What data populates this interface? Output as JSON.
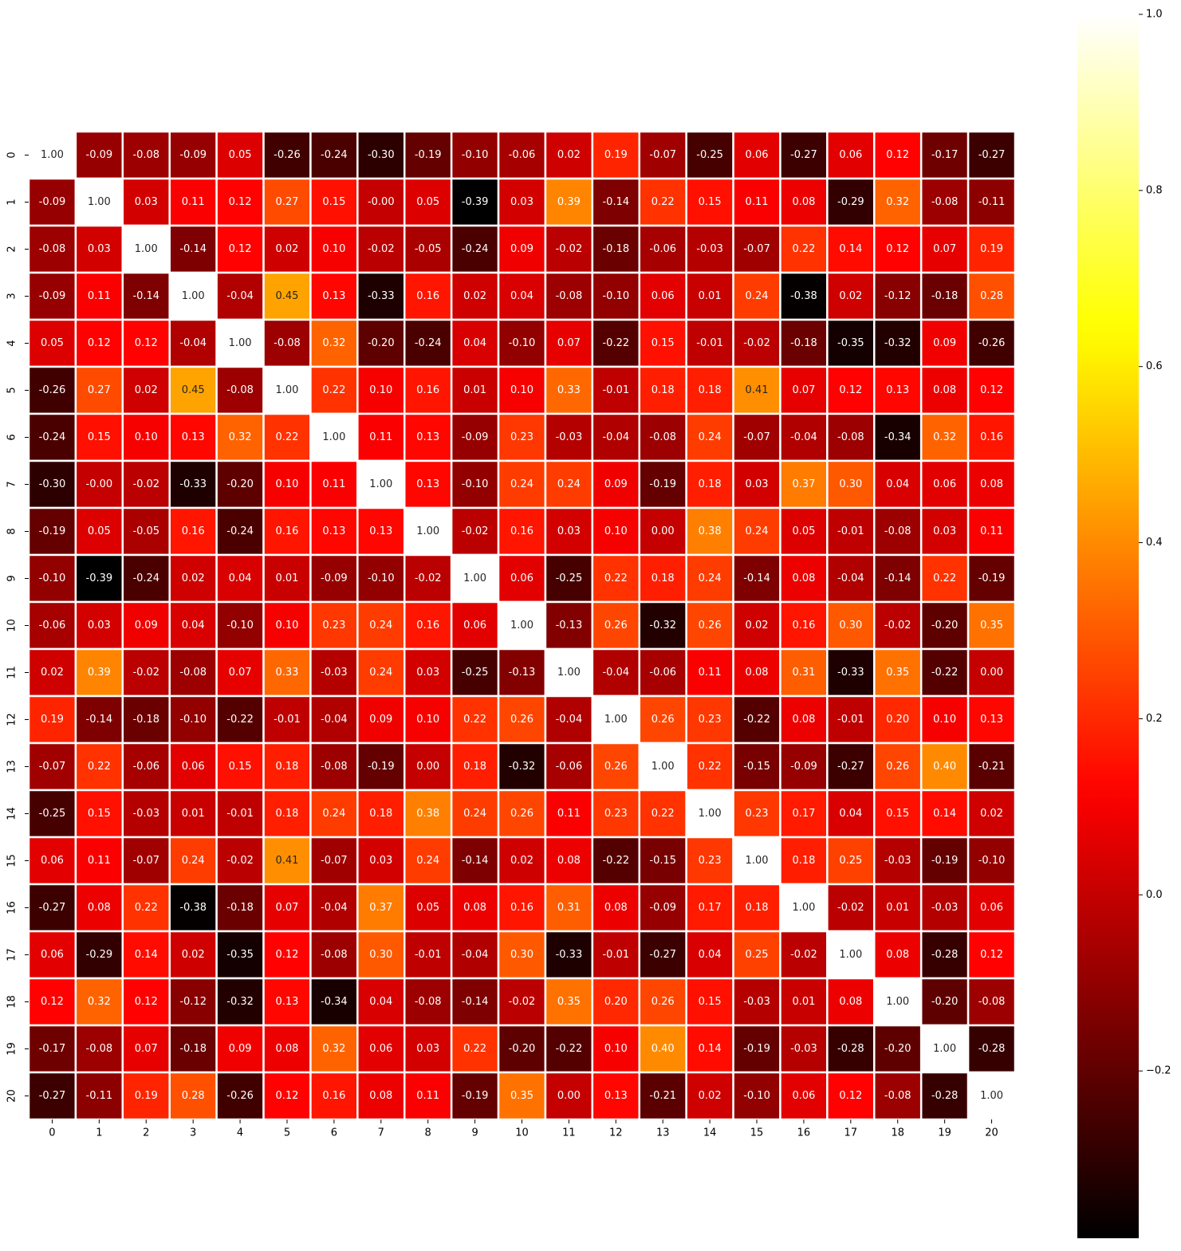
{
  "chart_data": {
    "type": "heatmap",
    "colormap": "hot",
    "categories": [
      "0",
      "1",
      "2",
      "3",
      "4",
      "5",
      "6",
      "7",
      "8",
      "9",
      "10",
      "11",
      "12",
      "13",
      "14",
      "15",
      "16",
      "17",
      "18",
      "19",
      "20"
    ],
    "y_categories": [
      "0",
      "1",
      "2",
      "3",
      "4",
      "5",
      "6",
      "7",
      "8",
      "9",
      "10",
      "11",
      "12",
      "13",
      "14",
      "15",
      "16",
      "17",
      "18",
      "19",
      "20"
    ],
    "values": [
      [
        1.0,
        -0.09,
        -0.08,
        -0.09,
        0.05,
        -0.26,
        -0.24,
        -0.3,
        -0.19,
        -0.1,
        -0.06,
        0.02,
        0.19,
        -0.07,
        -0.25,
        0.06,
        -0.27,
        0.06,
        0.12,
        -0.17,
        -0.27
      ],
      [
        -0.09,
        1.0,
        0.03,
        0.11,
        0.12,
        0.27,
        0.15,
        -0.0,
        0.05,
        -0.39,
        0.03,
        0.39,
        -0.14,
        0.22,
        0.15,
        0.11,
        0.08,
        -0.29,
        0.32,
        -0.08,
        -0.11
      ],
      [
        -0.08,
        0.03,
        1.0,
        -0.14,
        0.12,
        0.02,
        0.1,
        -0.02,
        -0.05,
        -0.24,
        0.09,
        -0.02,
        -0.18,
        -0.06,
        -0.03,
        -0.07,
        0.22,
        0.14,
        0.12,
        0.07,
        0.19
      ],
      [
        -0.09,
        0.11,
        -0.14,
        1.0,
        -0.04,
        0.45,
        0.13,
        -0.33,
        0.16,
        0.02,
        0.04,
        -0.08,
        -0.1,
        0.06,
        0.01,
        0.24,
        -0.38,
        0.02,
        -0.12,
        -0.18,
        0.28
      ],
      [
        0.05,
        0.12,
        0.12,
        -0.04,
        1.0,
        -0.08,
        0.32,
        -0.2,
        -0.24,
        0.04,
        -0.1,
        0.07,
        -0.22,
        0.15,
        -0.01,
        -0.02,
        -0.18,
        -0.35,
        -0.32,
        0.09,
        -0.26
      ],
      [
        -0.26,
        0.27,
        0.02,
        0.45,
        -0.08,
        1.0,
        0.22,
        0.1,
        0.16,
        0.01,
        0.1,
        0.33,
        -0.01,
        0.18,
        0.18,
        0.41,
        0.07,
        0.12,
        0.13,
        0.08,
        0.12
      ],
      [
        -0.24,
        0.15,
        0.1,
        0.13,
        0.32,
        0.22,
        1.0,
        0.11,
        0.13,
        -0.09,
        0.23,
        -0.03,
        -0.04,
        -0.08,
        0.24,
        -0.07,
        -0.04,
        -0.08,
        -0.34,
        0.32,
        0.16
      ],
      [
        -0.3,
        -0.0,
        -0.02,
        -0.33,
        -0.2,
        0.1,
        0.11,
        1.0,
        0.13,
        -0.1,
        0.24,
        0.24,
        0.09,
        -0.19,
        0.18,
        0.03,
        0.37,
        0.3,
        0.04,
        0.06,
        0.08
      ],
      [
        -0.19,
        0.05,
        -0.05,
        0.16,
        -0.24,
        0.16,
        0.13,
        0.13,
        1.0,
        -0.02,
        0.16,
        0.03,
        0.1,
        0.0,
        0.38,
        0.24,
        0.05,
        -0.01,
        -0.08,
        0.03,
        0.11
      ],
      [
        -0.1,
        -0.39,
        -0.24,
        0.02,
        0.04,
        0.01,
        -0.09,
        -0.1,
        -0.02,
        1.0,
        0.06,
        -0.25,
        0.22,
        0.18,
        0.24,
        -0.14,
        0.08,
        -0.04,
        -0.14,
        0.22,
        -0.19
      ],
      [
        -0.06,
        0.03,
        0.09,
        0.04,
        -0.1,
        0.1,
        0.23,
        0.24,
        0.16,
        0.06,
        1.0,
        -0.13,
        0.26,
        -0.32,
        0.26,
        0.02,
        0.16,
        0.3,
        -0.02,
        -0.2,
        0.35
      ],
      [
        0.02,
        0.39,
        -0.02,
        -0.08,
        0.07,
        0.33,
        -0.03,
        0.24,
        0.03,
        -0.25,
        -0.13,
        1.0,
        -0.04,
        -0.06,
        0.11,
        0.08,
        0.31,
        -0.33,
        0.35,
        -0.22,
        0.0
      ],
      [
        0.19,
        -0.14,
        -0.18,
        -0.1,
        -0.22,
        -0.01,
        -0.04,
        0.09,
        0.1,
        0.22,
        0.26,
        -0.04,
        1.0,
        0.26,
        0.23,
        -0.22,
        0.08,
        -0.01,
        0.2,
        0.1,
        0.13
      ],
      [
        -0.07,
        0.22,
        -0.06,
        0.06,
        0.15,
        0.18,
        -0.08,
        -0.19,
        0.0,
        0.18,
        -0.32,
        -0.06,
        0.26,
        1.0,
        0.22,
        -0.15,
        -0.09,
        -0.27,
        0.26,
        0.4,
        -0.21
      ],
      [
        -0.25,
        0.15,
        -0.03,
        0.01,
        -0.01,
        0.18,
        0.24,
        0.18,
        0.38,
        0.24,
        0.26,
        0.11,
        0.23,
        0.22,
        1.0,
        0.23,
        0.17,
        0.04,
        0.15,
        0.14,
        0.02
      ],
      [
        0.06,
        0.11,
        -0.07,
        0.24,
        -0.02,
        0.41,
        -0.07,
        0.03,
        0.24,
        -0.14,
        0.02,
        0.08,
        -0.22,
        -0.15,
        0.23,
        1.0,
        0.18,
        0.25,
        -0.03,
        -0.19,
        -0.1
      ],
      [
        -0.27,
        0.08,
        0.22,
        -0.38,
        -0.18,
        0.07,
        -0.04,
        0.37,
        0.05,
        0.08,
        0.16,
        0.31,
        0.08,
        -0.09,
        0.17,
        0.18,
        1.0,
        -0.02,
        0.01,
        -0.03,
        0.06
      ],
      [
        0.06,
        -0.29,
        0.14,
        0.02,
        -0.35,
        0.12,
        -0.08,
        0.3,
        -0.01,
        -0.04,
        0.3,
        -0.33,
        -0.01,
        -0.27,
        0.04,
        0.25,
        -0.02,
        1.0,
        0.08,
        -0.28,
        0.12
      ],
      [
        0.12,
        0.32,
        0.12,
        -0.12,
        -0.32,
        0.13,
        -0.34,
        0.04,
        -0.08,
        -0.14,
        -0.02,
        0.35,
        0.2,
        0.26,
        0.15,
        -0.03,
        0.01,
        0.08,
        1.0,
        -0.2,
        -0.08
      ],
      [
        -0.17,
        -0.08,
        0.07,
        -0.18,
        0.09,
        0.08,
        0.32,
        0.06,
        0.03,
        0.22,
        -0.2,
        -0.22,
        0.1,
        0.4,
        0.14,
        -0.19,
        -0.03,
        -0.28,
        -0.2,
        1.0,
        -0.28
      ],
      [
        -0.27,
        -0.11,
        0.19,
        0.28,
        -0.26,
        0.12,
        0.16,
        0.08,
        0.11,
        -0.19,
        0.35,
        0.0,
        0.13,
        -0.21,
        0.02,
        -0.1,
        0.06,
        0.12,
        -0.08,
        -0.28,
        1.0
      ]
    ],
    "value_labels": [
      [
        "1.00",
        "-0.09",
        "-0.08",
        "-0.09",
        "0.05",
        "-0.26",
        "-0.24",
        "-0.30",
        "-0.19",
        "-0.10",
        "-0.06",
        "0.02",
        "0.19",
        "-0.07",
        "-0.25",
        "0.06",
        "-0.27",
        "0.06",
        "0.12",
        "-0.17",
        "-0.27"
      ],
      [
        "-0.09",
        "1.00",
        "0.03",
        "0.11",
        "0.12",
        "0.27",
        "0.15",
        "-0.00",
        "0.05",
        "-0.39",
        "0.03",
        "0.39",
        "-0.14",
        "0.22",
        "0.15",
        "0.11",
        "0.08",
        "-0.29",
        "0.32",
        "-0.08",
        "-0.11"
      ],
      [
        "-0.08",
        "0.03",
        "1.00",
        "-0.14",
        "0.12",
        "0.02",
        "0.10",
        "-0.02",
        "-0.05",
        "-0.24",
        "0.09",
        "-0.02",
        "-0.18",
        "-0.06",
        "-0.03",
        "-0.07",
        "0.22",
        "0.14",
        "0.12",
        "0.07",
        "0.19"
      ],
      [
        "-0.09",
        "0.11",
        "-0.14",
        "1.00",
        "-0.04",
        "0.45",
        "0.13",
        "-0.33",
        "0.16",
        "0.02",
        "0.04",
        "-0.08",
        "-0.10",
        "0.06",
        "0.01",
        "0.24",
        "-0.38",
        "0.02",
        "-0.12",
        "-0.18",
        "0.28"
      ],
      [
        "0.05",
        "0.12",
        "0.12",
        "-0.04",
        "1.00",
        "-0.08",
        "0.32",
        "-0.20",
        "-0.24",
        "0.04",
        "-0.10",
        "0.07",
        "-0.22",
        "0.15",
        "-0.01",
        "-0.02",
        "-0.18",
        "-0.35",
        "-0.32",
        "0.09",
        "-0.26"
      ],
      [
        "-0.26",
        "0.27",
        "0.02",
        "0.45",
        "-0.08",
        "1.00",
        "0.22",
        "0.10",
        "0.16",
        "0.01",
        "0.10",
        "0.33",
        "-0.01",
        "0.18",
        "0.18",
        "0.41",
        "0.07",
        "0.12",
        "0.13",
        "0.08",
        "0.12"
      ],
      [
        "-0.24",
        "0.15",
        "0.10",
        "0.13",
        "0.32",
        "0.22",
        "1.00",
        "0.11",
        "0.13",
        "-0.09",
        "0.23",
        "-0.03",
        "-0.04",
        "-0.08",
        "0.24",
        "-0.07",
        "-0.04",
        "-0.08",
        "-0.34",
        "0.32",
        "0.16"
      ],
      [
        "-0.30",
        "-0.00",
        "-0.02",
        "-0.33",
        "-0.20",
        "0.10",
        "0.11",
        "1.00",
        "0.13",
        "-0.10",
        "0.24",
        "0.24",
        "0.09",
        "-0.19",
        "0.18",
        "0.03",
        "0.37",
        "0.30",
        "0.04",
        "0.06",
        "0.08"
      ],
      [
        "-0.19",
        "0.05",
        "-0.05",
        "0.16",
        "-0.24",
        "0.16",
        "0.13",
        "0.13",
        "1.00",
        "-0.02",
        "0.16",
        "0.03",
        "0.10",
        "0.00",
        "0.38",
        "0.24",
        "0.05",
        "-0.01",
        "-0.08",
        "0.03",
        "0.11"
      ],
      [
        "-0.10",
        "-0.39",
        "-0.24",
        "0.02",
        "0.04",
        "0.01",
        "-0.09",
        "-0.10",
        "-0.02",
        "1.00",
        "0.06",
        "-0.25",
        "0.22",
        "0.18",
        "0.24",
        "-0.14",
        "0.08",
        "-0.04",
        "-0.14",
        "0.22",
        "-0.19"
      ],
      [
        "-0.06",
        "0.03",
        "0.09",
        "0.04",
        "-0.10",
        "0.10",
        "0.23",
        "0.24",
        "0.16",
        "0.06",
        "1.00",
        "-0.13",
        "0.26",
        "-0.32",
        "0.26",
        "0.02",
        "0.16",
        "0.30",
        "-0.02",
        "-0.20",
        "0.35"
      ],
      [
        "0.02",
        "0.39",
        "-0.02",
        "-0.08",
        "0.07",
        "0.33",
        "-0.03",
        "0.24",
        "0.03",
        "-0.25",
        "-0.13",
        "1.00",
        "-0.04",
        "-0.06",
        "0.11",
        "0.08",
        "0.31",
        "-0.33",
        "0.35",
        "-0.22",
        "0.00"
      ],
      [
        "0.19",
        "-0.14",
        "-0.18",
        "-0.10",
        "-0.22",
        "-0.01",
        "-0.04",
        "0.09",
        "0.10",
        "0.22",
        "0.26",
        "-0.04",
        "1.00",
        "0.26",
        "0.23",
        "-0.22",
        "0.08",
        "-0.01",
        "0.20",
        "0.10",
        "0.13"
      ],
      [
        "-0.07",
        "0.22",
        "-0.06",
        "0.06",
        "0.15",
        "0.18",
        "-0.08",
        "-0.19",
        "0.00",
        "0.18",
        "-0.32",
        "-0.06",
        "0.26",
        "1.00",
        "0.22",
        "-0.15",
        "-0.09",
        "-0.27",
        "0.26",
        "0.40",
        "-0.21"
      ],
      [
        "-0.25",
        "0.15",
        "-0.03",
        "0.01",
        "-0.01",
        "0.18",
        "0.24",
        "0.18",
        "0.38",
        "0.24",
        "0.26",
        "0.11",
        "0.23",
        "0.22",
        "1.00",
        "0.23",
        "0.17",
        "0.04",
        "0.15",
        "0.14",
        "0.02"
      ],
      [
        "0.06",
        "0.11",
        "-0.07",
        "0.24",
        "-0.02",
        "0.41",
        "-0.07",
        "0.03",
        "0.24",
        "-0.14",
        "0.02",
        "0.08",
        "-0.22",
        "-0.15",
        "0.23",
        "1.00",
        "0.18",
        "0.25",
        "-0.03",
        "-0.19",
        "-0.10"
      ],
      [
        "-0.27",
        "0.08",
        "0.22",
        "-0.38",
        "-0.18",
        "0.07",
        "-0.04",
        "0.37",
        "0.05",
        "0.08",
        "0.16",
        "0.31",
        "0.08",
        "-0.09",
        "0.17",
        "0.18",
        "1.00",
        "-0.02",
        "0.01",
        "-0.03",
        "0.06"
      ],
      [
        "0.06",
        "-0.29",
        "0.14",
        "0.02",
        "-0.35",
        "0.12",
        "-0.08",
        "0.30",
        "-0.01",
        "-0.04",
        "0.30",
        "-0.33",
        "-0.01",
        "-0.27",
        "0.04",
        "0.25",
        "-0.02",
        "1.00",
        "0.08",
        "-0.28",
        "0.12"
      ],
      [
        "0.12",
        "0.32",
        "0.12",
        "-0.12",
        "-0.32",
        "0.13",
        "-0.34",
        "0.04",
        "-0.08",
        "-0.14",
        "-0.02",
        "0.35",
        "0.20",
        "0.26",
        "0.15",
        "-0.03",
        "0.01",
        "0.08",
        "1.00",
        "-0.20",
        "-0.08"
      ],
      [
        "-0.17",
        "-0.08",
        "0.07",
        "-0.18",
        "0.09",
        "0.08",
        "0.32",
        "0.06",
        "0.03",
        "0.22",
        "-0.20",
        "-0.22",
        "0.10",
        "0.40",
        "0.14",
        "-0.19",
        "-0.03",
        "-0.28",
        "-0.20",
        "1.00",
        "-0.28"
      ],
      [
        "-0.27",
        "-0.11",
        "0.19",
        "0.28",
        "-0.26",
        "0.12",
        "0.16",
        "0.08",
        "0.11",
        "-0.19",
        "0.35",
        "0.00",
        "0.13",
        "-0.21",
        "0.02",
        "-0.10",
        "0.06",
        "0.12",
        "-0.08",
        "-0.28",
        "1.00"
      ]
    ],
    "zlim": [
      -0.39,
      1.0
    ],
    "zticks": [
      {
        "value": -0.2,
        "label": "−0.2"
      },
      {
        "value": 0.0,
        "label": "0.0"
      },
      0.2,
      0.4,
      0.6,
      0.8,
      {
        "value": 1.0,
        "label": "1.0"
      }
    ]
  }
}
